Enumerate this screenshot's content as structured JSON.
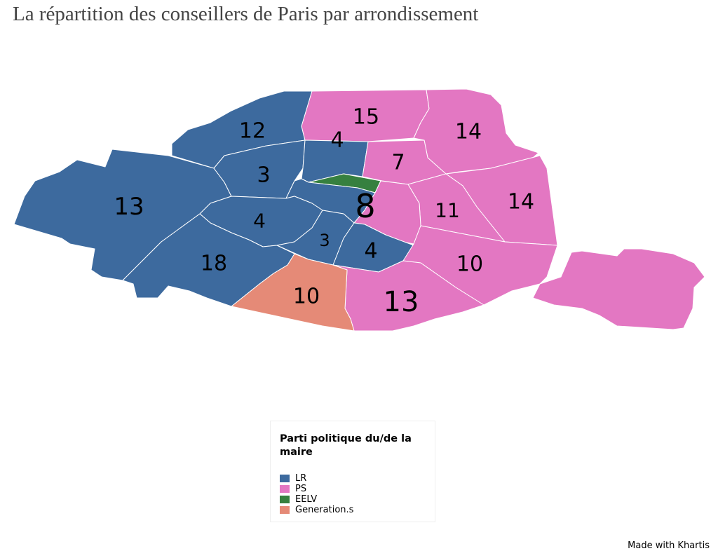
{
  "title": "La répartition des conseillers de Paris par arrondissement",
  "colors": {
    "LR": "#3d6a9e",
    "PS": "#e377c2",
    "EELV": "#36803f",
    "Generation.s": "#e58a77"
  },
  "regions": [
    {
      "label": "12",
      "party": "LR"
    },
    {
      "label": "15",
      "party": "PS"
    },
    {
      "label": "14",
      "party": "PS"
    },
    {
      "label": "14",
      "party": "PS"
    },
    {
      "label": "13",
      "party": "LR"
    },
    {
      "label": "3",
      "party": "LR"
    },
    {
      "label": "4",
      "party": "LR"
    },
    {
      "label": "7",
      "party": "PS"
    },
    {
      "label": "",
      "party": "EELV"
    },
    {
      "label": "8",
      "party": "LR"
    },
    {
      "label": "11",
      "party": "PS"
    },
    {
      "label": "",
      "party": "PS"
    },
    {
      "label": "4",
      "party": "LR"
    },
    {
      "label": "3",
      "party": "LR"
    },
    {
      "label": "4",
      "party": "LR"
    },
    {
      "label": "10",
      "party": "PS"
    },
    {
      "label": "",
      "party": "PS"
    },
    {
      "label": "13",
      "party": "PS"
    },
    {
      "label": "10",
      "party": "Generation.s"
    },
    {
      "label": "18",
      "party": "LR"
    }
  ],
  "legend": {
    "title": "Parti politique du/de la maire",
    "items": [
      {
        "label": "LR",
        "party": "LR"
      },
      {
        "label": "PS",
        "party": "PS"
      },
      {
        "label": "EELV",
        "party": "EELV"
      },
      {
        "label": "Generation.s",
        "party": "Generation.s"
      }
    ]
  },
  "credit": "Made with Khartis"
}
